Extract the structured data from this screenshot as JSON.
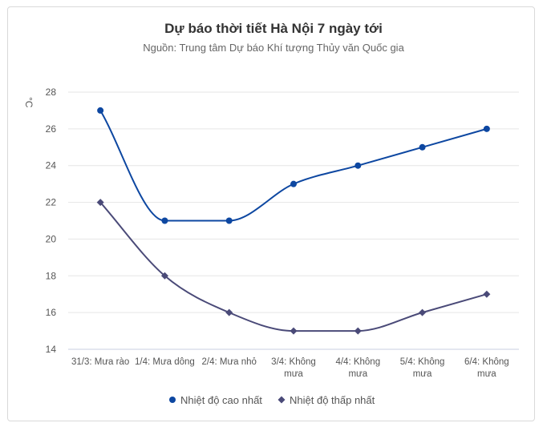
{
  "chart_data": {
    "type": "line",
    "title": "Dự báo thời tiết Hà Nội 7 ngày tới",
    "subtitle": "Nguồn: Trung tâm Dự báo Khí tượng Thủy văn Quốc gia",
    "ylabel": "°C",
    "xlabel": "",
    "categories": [
      [
        "31/3: Mưa rào"
      ],
      [
        "1/4: Mưa dông"
      ],
      [
        "2/4: Mưa nhỏ"
      ],
      [
        "3/4: Không",
        "mưa"
      ],
      [
        "4/4: Không",
        "mưa"
      ],
      [
        "5/4: Không",
        "mưa"
      ],
      [
        "6/4: Không",
        "mưa"
      ]
    ],
    "ylim": [
      14,
      28
    ],
    "yticks": [
      14,
      16,
      18,
      20,
      22,
      24,
      26,
      28
    ],
    "grid": true,
    "legend_position": "bottom-center",
    "series": [
      {
        "name": "Nhiệt độ cao nhất",
        "values": [
          27,
          21,
          21,
          23,
          24,
          25,
          26
        ],
        "color": "#0d47a1",
        "marker": "circle"
      },
      {
        "name": "Nhiệt độ thấp nhất",
        "values": [
          22,
          18,
          16,
          15,
          15,
          16,
          17
        ],
        "color": "#4a4a78",
        "marker": "diamond"
      }
    ]
  }
}
